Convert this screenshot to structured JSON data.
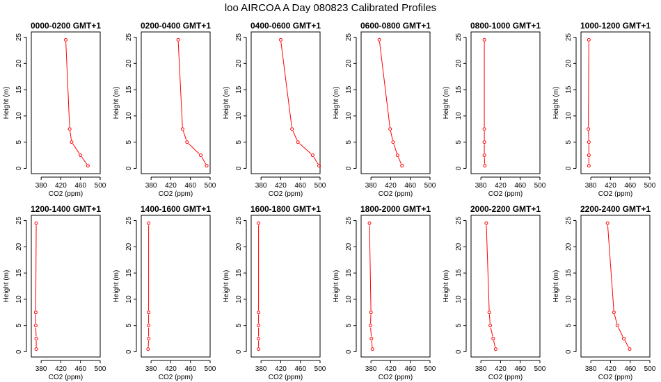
{
  "figure_title": "loo AIRCOA A  Day 080823  Calibrated Profiles",
  "colors": {
    "series": "#ff0000",
    "axes": "#000000",
    "background": "#ffffff"
  },
  "chart_data": [
    {
      "type": "line",
      "title": "0000-0200 GMT+1",
      "xlabel": "CO2 (ppm)",
      "ylabel": "Height (m)",
      "xlim": [
        360,
        500
      ],
      "ylim": [
        0,
        25
      ],
      "xticks": [
        380,
        420,
        460,
        500
      ],
      "yticks": [
        0,
        5,
        10,
        15,
        20,
        25
      ],
      "grid": false,
      "marker": "open-circle",
      "series": [
        {
          "x": [
            475,
            460,
            442,
            438,
            430
          ],
          "y": [
            0.5,
            2.5,
            5,
            7.5,
            24.5
          ]
        }
      ]
    },
    {
      "type": "line",
      "title": "0200-0400 GMT+1",
      "xlabel": "CO2 (ppm)",
      "ylabel": "Height (m)",
      "xlim": [
        360,
        500
      ],
      "ylim": [
        0,
        25
      ],
      "xticks": [
        380,
        420,
        460,
        500
      ],
      "yticks": [
        0,
        5,
        10,
        15,
        20,
        25
      ],
      "grid": false,
      "marker": "open-circle",
      "series": [
        {
          "x": [
            493,
            481,
            453,
            444,
            435
          ],
          "y": [
            0.5,
            2.5,
            5,
            7.5,
            24.5
          ]
        }
      ]
    },
    {
      "type": "line",
      "title": "0400-0600 GMT+1",
      "xlabel": "CO2 (ppm)",
      "ylabel": "Height (m)",
      "xlim": [
        360,
        500
      ],
      "ylim": [
        0,
        25
      ],
      "xticks": [
        380,
        420,
        460,
        500
      ],
      "yticks": [
        0,
        5,
        10,
        15,
        20,
        25
      ],
      "grid": false,
      "marker": "open-circle",
      "series": [
        {
          "x": [
            498,
            485,
            455,
            443,
            420
          ],
          "y": [
            0.5,
            2.5,
            5,
            7.5,
            24.5
          ]
        }
      ]
    },
    {
      "type": "line",
      "title": "0600-0800 GMT+1",
      "xlabel": "CO2 (ppm)",
      "ylabel": "Height (m)",
      "xlim": [
        360,
        500
      ],
      "ylim": [
        0,
        25
      ],
      "xticks": [
        380,
        420,
        460,
        500
      ],
      "yticks": [
        0,
        5,
        10,
        15,
        20,
        25
      ],
      "grid": false,
      "marker": "open-circle",
      "series": [
        {
          "x": [
            443,
            434,
            425,
            419,
            397
          ],
          "y": [
            0.5,
            2.5,
            5,
            7.5,
            24.5
          ]
        }
      ]
    },
    {
      "type": "line",
      "title": "0800-1000 GMT+1",
      "xlabel": "CO2 (ppm)",
      "ylabel": "Height (m)",
      "xlim": [
        360,
        500
      ],
      "ylim": [
        0,
        25
      ],
      "xticks": [
        380,
        420,
        460,
        500
      ],
      "yticks": [
        0,
        5,
        10,
        15,
        20,
        25
      ],
      "grid": false,
      "marker": "open-circle",
      "series": [
        {
          "x": [
            388,
            387,
            387,
            387,
            387
          ],
          "y": [
            0.5,
            2.5,
            5,
            7.5,
            24.5
          ]
        }
      ]
    },
    {
      "type": "line",
      "title": "1000-1200 GMT+1",
      "xlabel": "CO2 (ppm)",
      "ylabel": "Height (m)",
      "xlim": [
        360,
        500
      ],
      "ylim": [
        0,
        25
      ],
      "xticks": [
        380,
        420,
        460,
        500
      ],
      "yticks": [
        0,
        5,
        10,
        15,
        20,
        25
      ],
      "grid": false,
      "marker": "open-circle",
      "series": [
        {
          "x": [
            376,
            376,
            376,
            375,
            376
          ],
          "y": [
            0.5,
            2.5,
            5,
            7.5,
            24.5
          ]
        }
      ]
    },
    {
      "type": "line",
      "title": "1200-1400 GMT+1",
      "xlabel": "CO2 (ppm)",
      "ylabel": "Height (m)",
      "xlim": [
        360,
        500
      ],
      "ylim": [
        0,
        25
      ],
      "xticks": [
        380,
        420,
        460,
        500
      ],
      "yticks": [
        0,
        5,
        10,
        15,
        20,
        25
      ],
      "grid": false,
      "marker": "open-circle",
      "series": [
        {
          "x": [
            370,
            370,
            369,
            369,
            370
          ],
          "y": [
            0.5,
            2.5,
            5,
            7.5,
            24.5
          ]
        }
      ]
    },
    {
      "type": "line",
      "title": "1400-1600 GMT+1",
      "xlabel": "CO2 (ppm)",
      "ylabel": "Height (m)",
      "xlim": [
        360,
        500
      ],
      "ylim": [
        0,
        25
      ],
      "xticks": [
        380,
        420,
        460,
        500
      ],
      "yticks": [
        0,
        5,
        10,
        15,
        20,
        25
      ],
      "grid": false,
      "marker": "open-circle",
      "series": [
        {
          "x": [
            374,
            375,
            375,
            375,
            375
          ],
          "y": [
            0.5,
            2.5,
            5,
            7.5,
            24.5
          ]
        }
      ]
    },
    {
      "type": "line",
      "title": "1600-1800 GMT+1",
      "xlabel": "CO2 (ppm)",
      "ylabel": "Height (m)",
      "xlim": [
        360,
        500
      ],
      "ylim": [
        0,
        25
      ],
      "xticks": [
        380,
        420,
        460,
        500
      ],
      "yticks": [
        0,
        5,
        10,
        15,
        20,
        25
      ],
      "grid": false,
      "marker": "open-circle",
      "series": [
        {
          "x": [
            375,
            375,
            375,
            375,
            375
          ],
          "y": [
            0.5,
            2.5,
            5,
            7.5,
            24.5
          ]
        }
      ]
    },
    {
      "type": "line",
      "title": "1800-2000 GMT+1",
      "xlabel": "CO2 (ppm)",
      "ylabel": "Height (m)",
      "xlim": [
        360,
        500
      ],
      "ylim": [
        0,
        25
      ],
      "xticks": [
        380,
        420,
        460,
        500
      ],
      "yticks": [
        0,
        5,
        10,
        15,
        20,
        25
      ],
      "grid": false,
      "marker": "open-circle",
      "series": [
        {
          "x": [
            383,
            381,
            379,
            380,
            377
          ],
          "y": [
            0.5,
            2.5,
            5,
            7.5,
            24.5
          ]
        }
      ]
    },
    {
      "type": "line",
      "title": "2000-2200 GMT+1",
      "xlabel": "CO2 (ppm)",
      "ylabel": "Height (m)",
      "xlim": [
        360,
        500
      ],
      "ylim": [
        0,
        25
      ],
      "xticks": [
        380,
        420,
        460,
        500
      ],
      "yticks": [
        0,
        5,
        10,
        15,
        20,
        25
      ],
      "grid": false,
      "marker": "open-circle",
      "series": [
        {
          "x": [
            410,
            405,
            399,
            397,
            391
          ],
          "y": [
            0.5,
            2.5,
            5,
            7.5,
            24.5
          ]
        }
      ]
    },
    {
      "type": "line",
      "title": "2200-2400 GMT+1",
      "xlabel": "CO2 (ppm)",
      "ylabel": "Height (m)",
      "xlim": [
        360,
        500
      ],
      "ylim": [
        0,
        25
      ],
      "xticks": [
        380,
        420,
        460,
        500
      ],
      "yticks": [
        0,
        5,
        10,
        15,
        20,
        25
      ],
      "grid": false,
      "marker": "open-circle",
      "series": [
        {
          "x": [
            459,
            447,
            434,
            427,
            414
          ],
          "y": [
            0.5,
            2.5,
            5,
            7.5,
            24.5
          ]
        }
      ]
    }
  ]
}
